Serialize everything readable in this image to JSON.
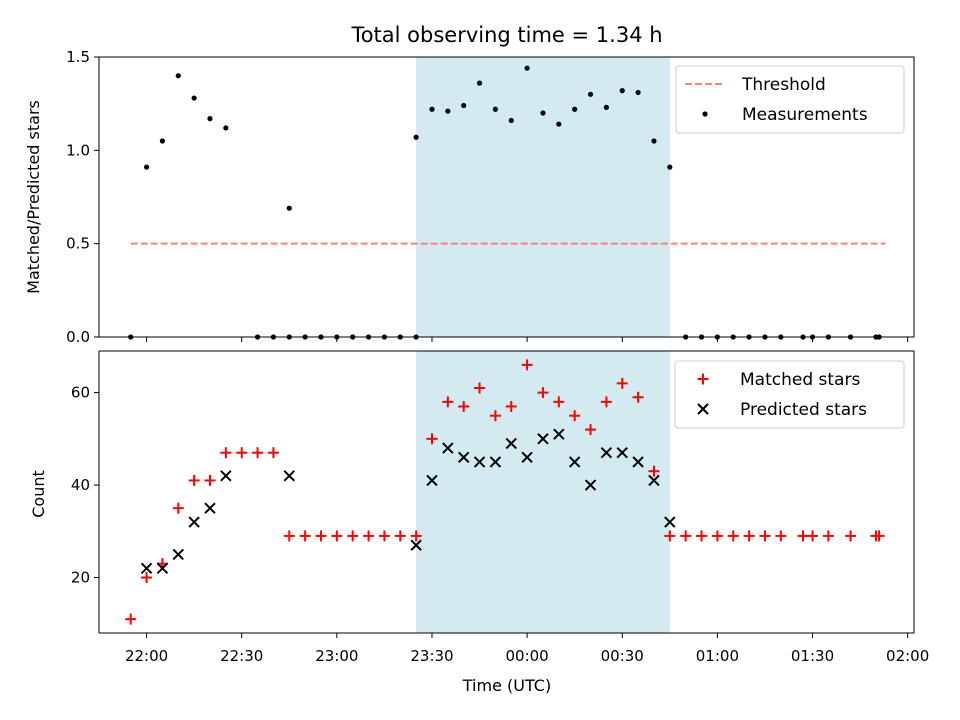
{
  "chart_data": [
    {
      "type": "scatter",
      "title": "Total observing time = 1.34 h",
      "xlabel": "",
      "ylabel": "Matched/Predicted stars",
      "xlim": [
        "21:45",
        "02:02"
      ],
      "ylim": [
        0,
        1.5
      ],
      "yticks": [
        "0.0",
        "0.5",
        "1.0",
        "1.5"
      ],
      "highlight_span": {
        "start": "23:25",
        "end": "00:45",
        "color": "#d3eaf0"
      },
      "threshold": {
        "name": "Threshold",
        "value": 0.5,
        "start": "21:55",
        "end": "01:53",
        "color": "#ff7f7f",
        "style": "dashed"
      },
      "series": [
        {
          "name": "Measurements",
          "color": "#000000",
          "marker": "dot",
          "x": [
            "21:55",
            "22:00",
            "22:05",
            "22:10",
            "22:15",
            "22:20",
            "22:25",
            "22:35",
            "22:40",
            "22:45",
            "22:45",
            "22:50",
            "22:55",
            "23:00",
            "23:05",
            "23:10",
            "23:15",
            "23:20",
            "23:25",
            "23:25",
            "23:30",
            "23:35",
            "23:40",
            "23:45",
            "23:50",
            "23:55",
            "00:00",
            "00:05",
            "00:10",
            "00:15",
            "00:20",
            "00:25",
            "00:30",
            "00:35",
            "00:40",
            "00:45",
            "00:50",
            "00:55",
            "01:00",
            "01:05",
            "01:10",
            "01:15",
            "01:20",
            "01:27",
            "01:30",
            "01:35",
            "01:42",
            "01:50",
            "01:51"
          ],
          "y": [
            0,
            0.91,
            1.05,
            1.4,
            1.28,
            1.17,
            1.12,
            0,
            0,
            0,
            0.69,
            0,
            0,
            0,
            0,
            0,
            0,
            0,
            0,
            1.07,
            1.22,
            1.21,
            1.24,
            1.36,
            1.22,
            1.16,
            1.44,
            1.2,
            1.14,
            1.22,
            1.3,
            1.23,
            1.32,
            1.31,
            1.05,
            0.91,
            0,
            0,
            0,
            0,
            0,
            0,
            0,
            0,
            0,
            0,
            0,
            0,
            0
          ]
        }
      ],
      "legend": "upper right"
    },
    {
      "type": "scatter",
      "title": "",
      "xlabel": "Time (UTC)",
      "ylabel": "Count",
      "xlim": [
        "21:45",
        "02:02"
      ],
      "ylim": [
        8,
        69
      ],
      "yticks": [
        "20",
        "40",
        "60"
      ],
      "xticks": [
        "22:00",
        "22:30",
        "23:00",
        "23:30",
        "00:00",
        "00:30",
        "01:00",
        "01:30",
        "02:00"
      ],
      "highlight_span": {
        "start": "23:25",
        "end": "00:45",
        "color": "#d3eaf0"
      },
      "series": [
        {
          "name": "Matched stars",
          "color": "#ff0000",
          "marker": "plus",
          "x": [
            "21:55",
            "22:00",
            "22:05",
            "22:10",
            "22:15",
            "22:20",
            "22:25",
            "22:30",
            "22:35",
            "22:40",
            "22:45",
            "22:50",
            "22:55",
            "23:00",
            "23:05",
            "23:10",
            "23:15",
            "23:20",
            "23:25",
            "23:30",
            "23:35",
            "23:40",
            "23:45",
            "23:50",
            "23:55",
            "00:00",
            "00:05",
            "00:10",
            "00:15",
            "00:20",
            "00:25",
            "00:30",
            "00:35",
            "00:40",
            "00:45",
            "00:50",
            "00:55",
            "01:00",
            "01:05",
            "01:10",
            "01:15",
            "01:20",
            "01:27",
            "01:30",
            "01:35",
            "01:42",
            "01:50",
            "01:51"
          ],
          "y": [
            11,
            20,
            23,
            35,
            41,
            41,
            47,
            47,
            47,
            47,
            29,
            29,
            29,
            29,
            29,
            29,
            29,
            29,
            29,
            50,
            58,
            57,
            61,
            55,
            57,
            66,
            60,
            58,
            55,
            52,
            58,
            62,
            59,
            43,
            29,
            29,
            29,
            29,
            29,
            29,
            29,
            29,
            29,
            29,
            29,
            29,
            29,
            29
          ]
        },
        {
          "name": "Predicted stars",
          "color": "#000000",
          "marker": "x",
          "x": [
            "22:00",
            "22:05",
            "22:10",
            "22:15",
            "22:20",
            "22:25",
            "22:45",
            "23:25",
            "23:30",
            "23:35",
            "23:40",
            "23:45",
            "23:50",
            "23:55",
            "00:00",
            "00:05",
            "00:10",
            "00:15",
            "00:20",
            "00:25",
            "00:30",
            "00:35",
            "00:40",
            "00:45"
          ],
          "y": [
            22,
            22,
            25,
            32,
            35,
            42,
            42,
            27,
            41,
            48,
            46,
            45,
            45,
            49,
            46,
            50,
            51,
            45,
            40,
            47,
            47,
            45,
            41,
            32
          ]
        }
      ],
      "legend": "upper right"
    }
  ]
}
